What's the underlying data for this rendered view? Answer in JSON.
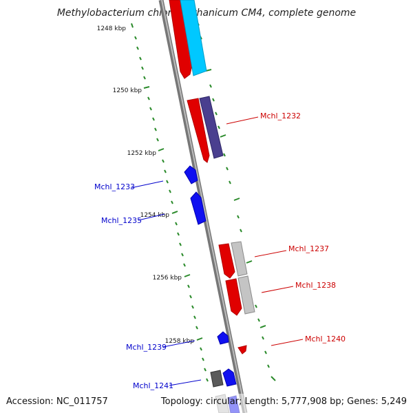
{
  "title": "Methylobacterium chloromethanicum CM4, complete genome",
  "footer": {
    "accession": "Accession: NC_011757",
    "summary": "Topology: circular; Length: 5,777,908 bp; Genes: 5,249"
  },
  "colors": {
    "forward_cds": "#ff0000",
    "reverse_cds": "#0000ff",
    "forward_label": "#cc0000",
    "reverse_label": "#0000cc",
    "backbone": "#8a8a8a",
    "tick": "#2a8a2a",
    "ring_cyan": "#00c8ff",
    "ring_indigo": "#4a3f8f",
    "ring_gray": "#bdbdbd"
  },
  "scale_labels": [
    "1248 kbp",
    "1250 kbp",
    "1252 kbp",
    "1254 kbp",
    "1256 kbp",
    "1258 kbp"
  ],
  "genes": [
    {
      "label": "Mchl_1232",
      "strand": "forward"
    },
    {
      "label": "Mchl_1233",
      "strand": "reverse"
    },
    {
      "label": "Mchl_1235",
      "strand": "reverse"
    },
    {
      "label": "Mchl_1237",
      "strand": "forward"
    },
    {
      "label": "Mchl_1238",
      "strand": "forward"
    },
    {
      "label": "Mchl_1239",
      "strand": "reverse"
    },
    {
      "label": "Mchl_1240",
      "strand": "forward"
    },
    {
      "label": "Mchl_1241",
      "strand": "reverse"
    }
  ]
}
